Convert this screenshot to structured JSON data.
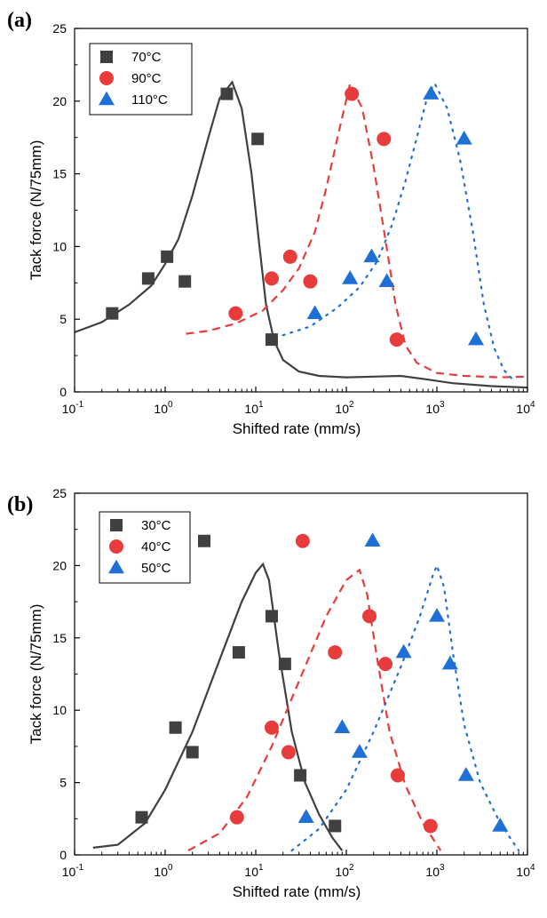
{
  "colors": {
    "s0": "#404040",
    "s1": "#e83c3c",
    "s2": "#1e6fd6"
  },
  "chart_data": [
    {
      "type": "scatter",
      "panel_label": "(a)",
      "xlabel": "Shifted rate (mm/s)",
      "ylabel": "Tack force (N/75mm)",
      "xscale": "log",
      "xlim": [
        0.1,
        10000
      ],
      "ylim": [
        0,
        25
      ],
      "x_tick_labels": [
        {
          "base": "10",
          "exp": "-1"
        },
        {
          "base": "10",
          "exp": "0"
        },
        {
          "base": "10",
          "exp": "1"
        },
        {
          "base": "10",
          "exp": "2"
        },
        {
          "base": "10",
          "exp": "3"
        },
        {
          "base": "10",
          "exp": "4"
        }
      ],
      "y_tick_labels": [
        "0",
        "5",
        "10",
        "15",
        "20",
        "25"
      ],
      "legend_position": "top-left",
      "grid": false,
      "series": [
        {
          "name": "70°C",
          "marker": "square",
          "color": "#404040",
          "points": [
            [
              0.26,
              5.4
            ],
            [
              0.65,
              7.8
            ],
            [
              1.05,
              9.3
            ],
            [
              1.65,
              7.6
            ],
            [
              4.8,
              20.5
            ],
            [
              10.5,
              17.4
            ],
            [
              15,
              3.6
            ]
          ]
        },
        {
          "name": "90°C",
          "marker": "circle",
          "color": "#e83c3c",
          "points": [
            [
              6,
              5.4
            ],
            [
              15,
              7.8
            ],
            [
              24,
              9.3
            ],
            [
              40,
              7.6
            ],
            [
              115,
              20.5
            ],
            [
              260,
              17.4
            ],
            [
              360,
              3.6
            ]
          ]
        },
        {
          "name": "110°C",
          "marker": "triangle",
          "color": "#1e6fd6",
          "points": [
            [
              45,
              5.4
            ],
            [
              110,
              7.8
            ],
            [
              190,
              9.3
            ],
            [
              280,
              7.6
            ],
            [
              860,
              20.5
            ],
            [
              2000,
              17.4
            ],
            [
              2700,
              3.6
            ]
          ]
        }
      ],
      "fit_curves": [
        {
          "series": "70°C",
          "style": "solid",
          "color": "#404040",
          "points": [
            [
              0.1,
              4.1
            ],
            [
              0.2,
              4.8
            ],
            [
              0.4,
              6.0
            ],
            [
              0.7,
              7.3
            ],
            [
              1.0,
              8.8
            ],
            [
              1.4,
              10.5
            ],
            [
              2.0,
              13.5
            ],
            [
              3.0,
              17.5
            ],
            [
              4.0,
              20.2
            ],
            [
              5.5,
              21.3
            ],
            [
              7.0,
              19.5
            ],
            [
              9.0,
              15.0
            ],
            [
              11.0,
              10.0
            ],
            [
              13.0,
              6.0
            ],
            [
              16.0,
              3.5
            ],
            [
              20.0,
              2.2
            ],
            [
              30.0,
              1.4
            ],
            [
              50.0,
              1.1
            ],
            [
              100.0,
              1.0
            ],
            [
              200.0,
              1.05
            ],
            [
              400.0,
              1.1
            ],
            [
              700.0,
              0.9
            ],
            [
              1500.0,
              0.6
            ],
            [
              4000.0,
              0.4
            ],
            [
              10000.0,
              0.3
            ]
          ]
        },
        {
          "series": "90°C",
          "style": "dashed",
          "color": "#e83c3c",
          "points": [
            [
              1.7,
              4.0
            ],
            [
              3.0,
              4.2
            ],
            [
              6.0,
              4.7
            ],
            [
              12.0,
              5.6
            ],
            [
              20.0,
              7.0
            ],
            [
              30.0,
              8.5
            ],
            [
              45.0,
              11.0
            ],
            [
              60.0,
              14.0
            ],
            [
              80.0,
              17.5
            ],
            [
              110.0,
              21.2
            ],
            [
              150.0,
              19.5
            ],
            [
              200.0,
              15.5
            ],
            [
              270.0,
              10.5
            ],
            [
              350.0,
              6.0
            ],
            [
              450.0,
              3.2
            ],
            [
              600.0,
              2.0
            ],
            [
              1000.0,
              1.3
            ],
            [
              2000.0,
              1.1
            ],
            [
              5000.0,
              1.0
            ],
            [
              10000.0,
              1.05
            ]
          ]
        },
        {
          "series": "110°C",
          "style": "dotted",
          "color": "#1e6fd6",
          "points": [
            [
              20.0,
              3.9
            ],
            [
              40.0,
              4.5
            ],
            [
              80.0,
              5.8
            ],
            [
              140.0,
              7.2
            ],
            [
              220.0,
              9.0
            ],
            [
              320.0,
              11.5
            ],
            [
              450.0,
              14.5
            ],
            [
              600.0,
              17.5
            ],
            [
              800.0,
              20.5
            ],
            [
              950.0,
              21.2
            ],
            [
              1300.0,
              19.5
            ],
            [
              1800.0,
              16.0
            ],
            [
              2500.0,
              11.0
            ],
            [
              3300.0,
              6.0
            ],
            [
              4300.0,
              3.0
            ],
            [
              5500.0,
              1.5
            ],
            [
              7000.0,
              0.8
            ]
          ]
        }
      ]
    },
    {
      "type": "scatter",
      "panel_label": "(b)",
      "xlabel": "Shifted rate (mm/s)",
      "ylabel": "Tack force (N/75mm)",
      "xscale": "log",
      "xlim": [
        0.1,
        10000
      ],
      "ylim": [
        0,
        25
      ],
      "x_tick_labels": [
        {
          "base": "10",
          "exp": "-1"
        },
        {
          "base": "10",
          "exp": "0"
        },
        {
          "base": "10",
          "exp": "1"
        },
        {
          "base": "10",
          "exp": "2"
        },
        {
          "base": "10",
          "exp": "3"
        },
        {
          "base": "10",
          "exp": "4"
        }
      ],
      "y_tick_labels": [
        "0",
        "5",
        "10",
        "15",
        "20",
        "25"
      ],
      "legend_position": "top-left",
      "grid": false,
      "series": [
        {
          "name": "30°C",
          "marker": "square",
          "color": "#404040",
          "points": [
            [
              0.55,
              2.6
            ],
            [
              1.3,
              8.8
            ],
            [
              2.0,
              7.1
            ],
            [
              2.7,
              21.7
            ],
            [
              6.5,
              14.0
            ],
            [
              15,
              16.5
            ],
            [
              21,
              13.2
            ],
            [
              31,
              5.5
            ],
            [
              75,
              2.0
            ]
          ]
        },
        {
          "name": "40°C",
          "marker": "circle",
          "color": "#e83c3c",
          "points": [
            [
              6.2,
              2.6
            ],
            [
              15,
              8.8
            ],
            [
              23,
              7.1
            ],
            [
              33,
              21.7
            ],
            [
              75,
              14.0
            ],
            [
              180,
              16.5
            ],
            [
              270,
              13.2
            ],
            [
              370,
              5.5
            ],
            [
              850,
              2.0
            ]
          ]
        },
        {
          "name": "50°C",
          "marker": "triangle",
          "color": "#1e6fd6",
          "points": [
            [
              36,
              2.6
            ],
            [
              90,
              8.8
            ],
            [
              140,
              7.1
            ],
            [
              195,
              21.7
            ],
            [
              430,
              14.0
            ],
            [
              1000,
              16.5
            ],
            [
              1400,
              13.2
            ],
            [
              2100,
              5.5
            ],
            [
              5000,
              2.0
            ]
          ]
        }
      ],
      "fit_curves": [
        {
          "series": "30°C",
          "style": "solid",
          "color": "#404040",
          "points": [
            [
              0.16,
              0.5
            ],
            [
              0.3,
              0.7
            ],
            [
              0.6,
              2.2
            ],
            [
              1.0,
              4.5
            ],
            [
              2.0,
              8.5
            ],
            [
              4.0,
              13.5
            ],
            [
              7.0,
              17.5
            ],
            [
              10.0,
              19.5
            ],
            [
              12.0,
              20.1
            ],
            [
              14.0,
              19.0
            ],
            [
              18.0,
              14.0
            ],
            [
              25.0,
              8.5
            ],
            [
              35.0,
              5.0
            ],
            [
              50.0,
              2.8
            ],
            [
              70.0,
              1.2
            ],
            [
              90.0,
              0.3
            ]
          ]
        },
        {
          "series": "40°C",
          "style": "dashed",
          "color": "#e83c3c",
          "points": [
            [
              1.8,
              0.3
            ],
            [
              4.0,
              1.5
            ],
            [
              8.0,
              4.0
            ],
            [
              15.0,
              7.5
            ],
            [
              30.0,
              12.0
            ],
            [
              60.0,
              16.5
            ],
            [
              100.0,
              19.0
            ],
            [
              140.0,
              19.7
            ],
            [
              170.0,
              18.0
            ],
            [
              220.0,
              13.5
            ],
            [
              300.0,
              8.5
            ],
            [
              450.0,
              4.8
            ],
            [
              700.0,
              2.2
            ],
            [
              1100.0,
              0.3
            ]
          ]
        },
        {
          "series": "50°C",
          "style": "dotted",
          "color": "#1e6fd6",
          "points": [
            [
              25.0,
              0.3
            ],
            [
              50.0,
              1.8
            ],
            [
              100.0,
              4.5
            ],
            [
              200.0,
              8.5
            ],
            [
              400.0,
              13.0
            ],
            [
              650.0,
              16.5
            ],
            [
              900.0,
              19.3
            ],
            [
              1000.0,
              20.0
            ],
            [
              1200.0,
              18.5
            ],
            [
              1500.0,
              14.0
            ],
            [
              2000.0,
              9.0
            ],
            [
              3000.0,
              5.0
            ],
            [
              5000.0,
              2.2
            ],
            [
              8000.0,
              0.3
            ]
          ]
        }
      ]
    }
  ]
}
